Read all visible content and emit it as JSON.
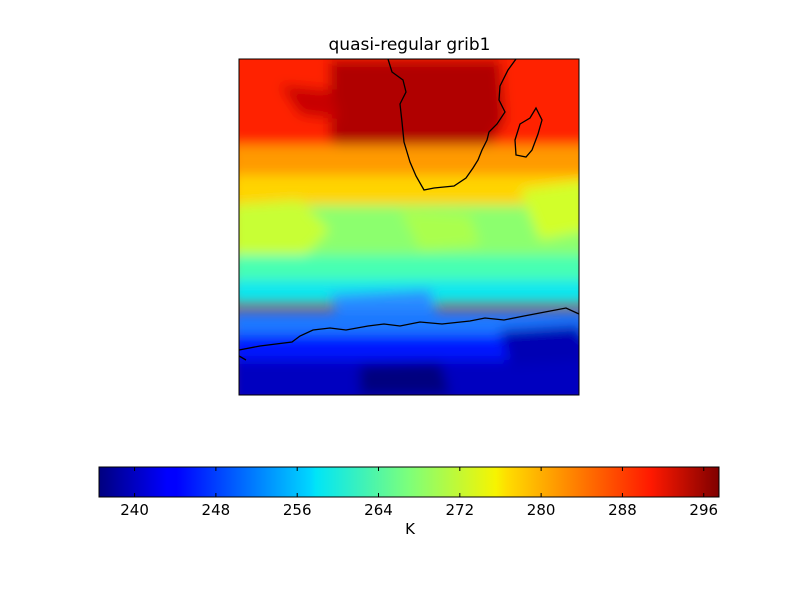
{
  "title": "quasi-regular grib1",
  "colorbar": {
    "label": "K",
    "min": 236.5,
    "max": 297.5,
    "ticks": [
      240,
      248,
      256,
      264,
      272,
      280,
      288,
      296
    ],
    "colormap": "jet"
  },
  "map": {
    "variable_unit": "K",
    "features": [
      "coastlines",
      "southern-africa",
      "madagascar",
      "antarctica-coast"
    ]
  }
}
